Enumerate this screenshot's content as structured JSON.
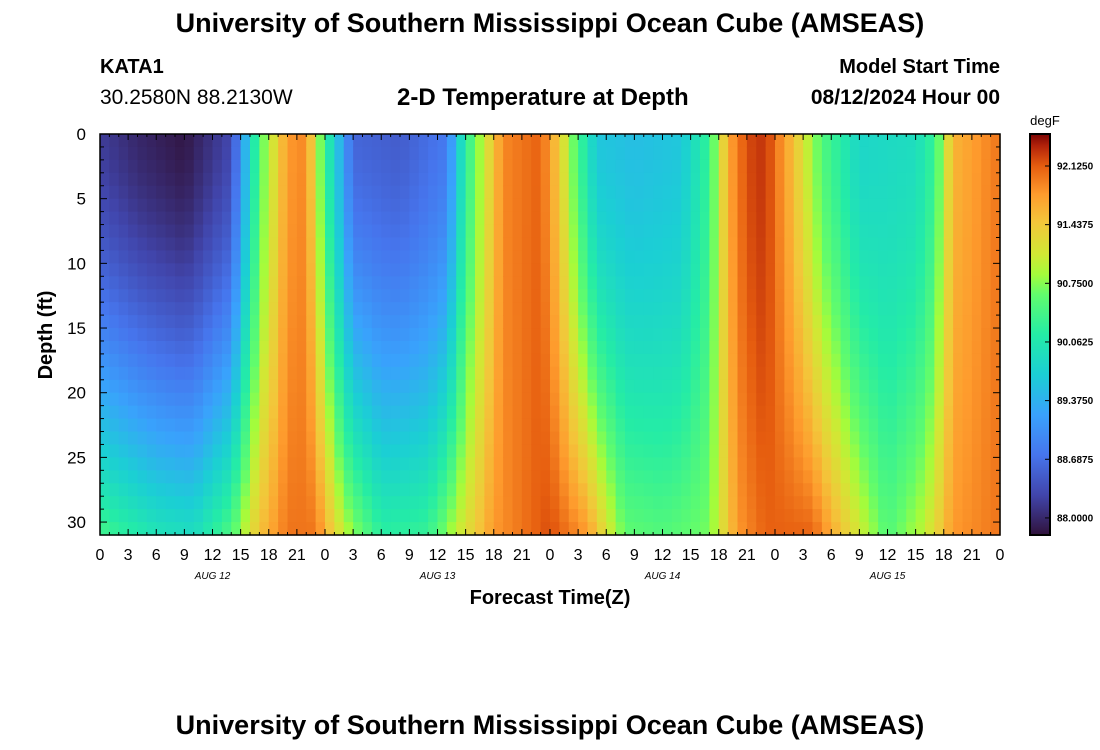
{
  "header": {
    "title": "University of Southern Mississippi Ocean Cube (AMSEAS)",
    "station": "KATA1",
    "coords": "30.2580N  88.2130W",
    "chart_title": "2-D Temperature at Depth",
    "model_start_label": "Model Start Time",
    "model_start_value": "08/12/2024 Hour 00"
  },
  "footer": {
    "title": "University of Southern Mississippi Ocean Cube (AMSEAS)"
  },
  "chart_data": {
    "type": "heatmap",
    "title": "2-D Temperature at Depth",
    "xlabel": "Forecast Time(Z)",
    "ylabel": "Depth (ft)",
    "x_range_hours": [
      0,
      96
    ],
    "y_range_ft": [
      0,
      31
    ],
    "x_tick_labels": [
      "0",
      "3",
      "6",
      "9",
      "12",
      "15",
      "18",
      "21",
      "0",
      "3",
      "6",
      "9",
      "12",
      "15",
      "18",
      "21",
      "0",
      "3",
      "6",
      "9",
      "12",
      "15",
      "18",
      "21",
      "0",
      "3",
      "6",
      "9",
      "12",
      "15",
      "18",
      "21",
      "0"
    ],
    "y_ticks": [
      0,
      5,
      10,
      15,
      20,
      25,
      30
    ],
    "dates": [
      {
        "label": "AUG 12",
        "hour": 12
      },
      {
        "label": "AUG 13",
        "hour": 36
      },
      {
        "label": "AUG 14",
        "hour": 60
      },
      {
        "label": "AUG 15",
        "hour": 84
      }
    ],
    "colorbar": {
      "unit": "degF",
      "min": 87.8,
      "max": 92.5,
      "labels": [
        "92.1250",
        "91.4375",
        "90.7500",
        "90.0625",
        "89.3750",
        "88.6875",
        "88.0000"
      ],
      "label_values": [
        92.125,
        91.4375,
        90.75,
        90.0625,
        89.375,
        88.6875,
        88.0
      ]
    },
    "surface_temp_by_hour": [
      [
        0,
        88.2
      ],
      [
        4,
        88.0
      ],
      [
        9,
        87.85
      ],
      [
        14,
        88.3
      ],
      [
        17,
        90.5
      ],
      [
        20,
        91.8
      ],
      [
        22,
        91.9
      ],
      [
        24,
        90.3
      ],
      [
        27,
        88.6
      ],
      [
        32,
        88.5
      ],
      [
        37,
        88.8
      ],
      [
        39,
        90.2
      ],
      [
        43,
        91.9
      ],
      [
        47,
        92.1
      ],
      [
        49,
        91.4
      ],
      [
        51,
        90.4
      ],
      [
        53,
        89.6
      ],
      [
        57,
        89.5
      ],
      [
        62,
        89.6
      ],
      [
        65,
        90.3
      ],
      [
        67,
        91.7
      ],
      [
        69,
        92.2
      ],
      [
        71,
        92.3
      ],
      [
        74,
        91.5
      ],
      [
        77,
        90.5
      ],
      [
        81,
        89.8
      ],
      [
        87,
        89.9
      ],
      [
        89,
        90.3
      ],
      [
        91,
        91.6
      ],
      [
        96,
        92.0
      ]
    ],
    "bottom_temp_by_hour": [
      [
        0,
        90.4
      ],
      [
        6,
        90.0
      ],
      [
        10,
        89.9
      ],
      [
        14,
        90.5
      ],
      [
        17,
        91.5
      ],
      [
        20,
        92.0
      ],
      [
        23,
        92.0
      ],
      [
        26,
        91.0
      ],
      [
        30,
        90.2
      ],
      [
        35,
        90.3
      ],
      [
        38,
        91.0
      ],
      [
        42,
        91.8
      ],
      [
        48,
        92.2
      ],
      [
        52,
        91.8
      ],
      [
        56,
        90.6
      ],
      [
        60,
        90.5
      ],
      [
        65,
        90.7
      ],
      [
        68,
        91.8
      ],
      [
        71,
        92.1
      ],
      [
        76,
        92.1
      ],
      [
        80,
        91.3
      ],
      [
        84,
        90.5
      ],
      [
        88,
        91.0
      ],
      [
        91,
        91.8
      ],
      [
        96,
        92.0
      ]
    ]
  }
}
